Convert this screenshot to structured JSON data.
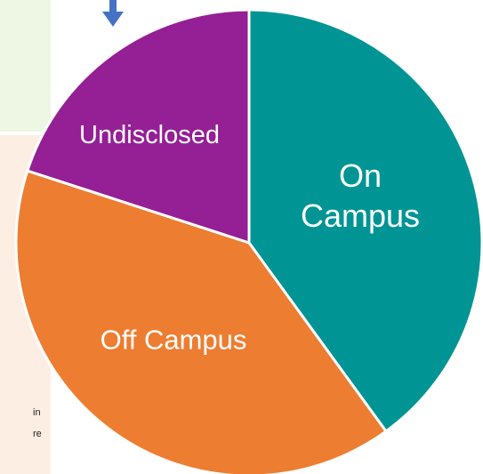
{
  "chart_data": {
    "type": "pie",
    "categories": [
      "On Campus",
      "Off Campus",
      "Undisclosed"
    ],
    "values": [
      40,
      40,
      20
    ],
    "colors": [
      "#009494",
      "#ed7d31",
      "#951f95"
    ]
  },
  "side_notes": [
    "in",
    "re"
  ]
}
